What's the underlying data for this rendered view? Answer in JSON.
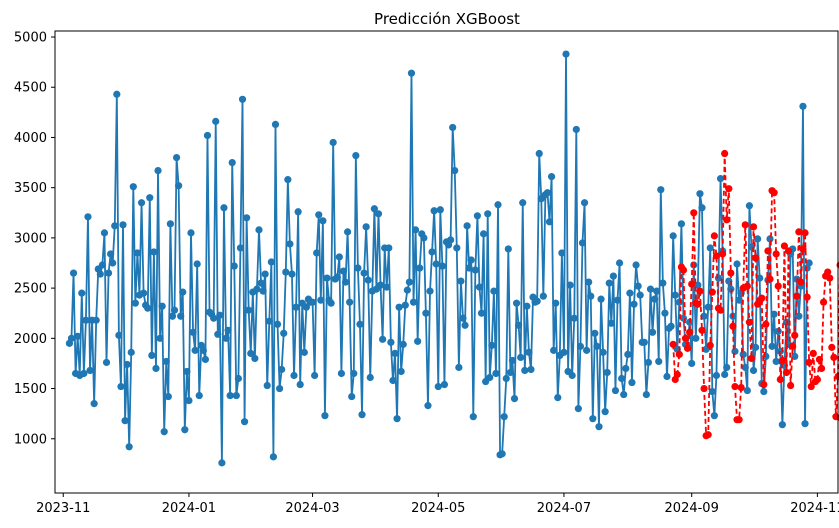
{
  "chart_data": {
    "type": "line",
    "title": "Predicción XGBoost",
    "xlabel": "",
    "ylabel": "",
    "x_range": [
      "2023-10-28",
      "2024-11-11"
    ],
    "ylim": [
      460,
      5060
    ],
    "grid": false,
    "legend": "none",
    "x_ticks": [
      "2023-11-01",
      "2024-01-01",
      "2024-03-01",
      "2024-05-01",
      "2024-07-01",
      "2024-09-01",
      "2024-11-01"
    ],
    "x_tick_labels": [
      "2023-11",
      "2024-01",
      "2024-03",
      "2024-05",
      "2024-07",
      "2024-09",
      "2024-11"
    ],
    "y_ticks": [
      1000,
      1500,
      2000,
      2500,
      3000,
      3500,
      4000,
      4500,
      5000
    ],
    "y_tick_labels": [
      "1000",
      "1500",
      "2000",
      "2500",
      "3000",
      "3500",
      "4000",
      "4500",
      "5000"
    ],
    "series": [
      {
        "color": "#1f77b4",
        "linestyle": "solid",
        "marker": "circle",
        "x_start": "2023-11-04",
        "x_end": "2024-11-03",
        "values": [
          1950,
          2000,
          2650,
          1650,
          2020,
          1630,
          2450,
          1650,
          2180,
          3210,
          1680,
          2180,
          1350,
          2180,
          2690,
          2640,
          2730,
          3050,
          1760,
          2650,
          2840,
          2750,
          3120,
          4430,
          2030,
          1520,
          3130,
          1180,
          1740,
          920,
          1860,
          3510,
          2350,
          2850,
          2430,
          3350,
          2450,
          2330,
          2300,
          3400,
          1830,
          2860,
          1700,
          3670,
          2000,
          2320,
          1070,
          1770,
          1420,
          3140,
          2220,
          2280,
          3800,
          3520,
          2220,
          2460,
          1090,
          1670,
          1380,
          3050,
          2060,
          1880,
          2740,
          1430,
          1930,
          1880,
          1790,
          4020,
          2260,
          2240,
          2200,
          4160,
          2040,
          2230,
          760,
          3300,
          2000,
          2080,
          1430,
          3750,
          2720,
          1430,
          1600,
          2900,
          4380,
          1170,
          3200,
          2280,
          1850,
          2460,
          1800,
          2490,
          3080,
          2550,
          2470,
          2640,
          1530,
          2170,
          2760,
          820,
          4130,
          2140,
          1500,
          1690,
          2050,
          2660,
          3580,
          2940,
          2640,
          1630,
          2310,
          3260,
          1540,
          2350,
          1860,
          2310,
          2390,
          2360,
          2360,
          1630,
          2850,
          3230,
          2380,
          3170,
          1230,
          2600,
          2380,
          2350,
          3950,
          2590,
          2610,
          2810,
          1650,
          2670,
          2560,
          3060,
          2360,
          1420,
          1650,
          3820,
          2700,
          2140,
          1240,
          2650,
          3110,
          2580,
          1610,
          2470,
          3290,
          2490,
          3240,
          2530,
          1990,
          2900,
          2510,
          2900,
          1960,
          1580,
          1850,
          1200,
          2310,
          1670,
          1940,
          2330,
          2480,
          2560,
          4640,
          2360,
          3080,
          1970,
          2700,
          3040,
          3000,
          2250,
          1330,
          2470,
          2860,
          3270,
          2740,
          1520,
          3280,
          2720,
          1540,
          2960,
          2930,
          2980,
          4100,
          3670,
          2900,
          1710,
          2570,
          2200,
          2130,
          3120,
          2700,
          2780,
          1220,
          2680,
          3220,
          2510,
          2250,
          3040,
          1570,
          3240,
          1610,
          1930,
          2470,
          1650,
          3330,
          840,
          850,
          1220,
          1600,
          2890,
          1660,
          1780,
          1400,
          2350,
          2130,
          1810,
          3350,
          1680,
          2320,
          1860,
          1690,
          2410,
          2360,
          2370,
          3840,
          3390,
          2420,
          3430,
          3450,
          3160,
          3610,
          1880,
          2350,
          1410,
          1830,
          2850,
          1860,
          4830,
          1670,
          2530,
          1630,
          2200,
          4080,
          1300,
          1920,
          2950,
          3350,
          1880,
          2560,
          2420,
          1200,
          2050,
          1920,
          1120,
          2390,
          1860,
          1270,
          1660,
          2550,
          2150,
          2620,
          1480,
          2380,
          2750,
          1600,
          1440,
          1700,
          1840,
          2450,
          1560,
          2340,
          2730,
          2520,
          2430,
          1960,
          1960,
          1440,
          1760,
          2490,
          2060,
          2390,
          2470,
          1770,
          3480,
          2550,
          2250,
          1620,
          2100,
          2120,
          3020,
          2430,
          1890,
          2360,
          3140,
          2200,
          1940,
          1930,
          2160,
          1750,
          2730,
          2000,
          2530,
          3440,
          3300,
          2220,
          1890,
          2310,
          2900,
          1470,
          1230,
          1630,
          2600,
          3590,
          2870,
          1640,
          1710,
          2570,
          2490,
          2220,
          1870,
          2740,
          2380,
          2450,
          1840,
          1710,
          1480,
          3320,
          2910,
          1680,
          1910,
          2990,
          2600,
          1550,
          1470,
          1820,
          2580,
          2990,
          1920,
          2240,
          1770,
          2070,
          1870,
          1140,
          1730,
          2160,
          1940,
          2840,
          2890,
          1820,
          2590,
          2220,
          2520,
          4310,
          1150,
          2700,
          2750
        ]
      },
      {
        "color": "#ff0000",
        "linestyle": "dashed",
        "marker": "circle",
        "x_start": "2024-08-23",
        "x_end": "2024-11-03",
        "values": [
          1940,
          1590,
          1640,
          1840,
          2710,
          2680,
          2000,
          1900,
          2060,
          2540,
          3250,
          2350,
          2340,
          2470,
          2080,
          1500,
          1030,
          1040,
          1930,
          2460,
          3020,
          2820,
          2300,
          2280,
          2840,
          3840,
          3180,
          3490,
          2650,
          2120,
          1520,
          1190,
          1190,
          1510,
          2500,
          3130,
          2520,
          2160,
          1800,
          3110,
          2800,
          2340,
          2370,
          2400,
          1540,
          2140,
          2870,
          2590,
          3470,
          3450,
          2840,
          2520,
          1590,
          1780,
          2920,
          1660,
          2870,
          1530,
          1920,
          2030,
          2420,
          3060,
          2560,
          2890,
          3050,
          2410,
          1760,
          1520,
          1850,
          1570,
          1590,
          1790,
          1700,
          2360,
          2620,
          2660,
          2600,
          1910,
          1810,
          1220,
          1620,
          2730,
          1190,
          1050,
          2720,
          2200,
          2580,
          2570,
          2910,
          2250,
          1700,
          1420,
          1630,
          1730,
          2380,
          1990,
          3000,
          2200,
          3770,
          2830,
          2260,
          3010,
          1330,
          1500
        ]
      }
    ]
  }
}
